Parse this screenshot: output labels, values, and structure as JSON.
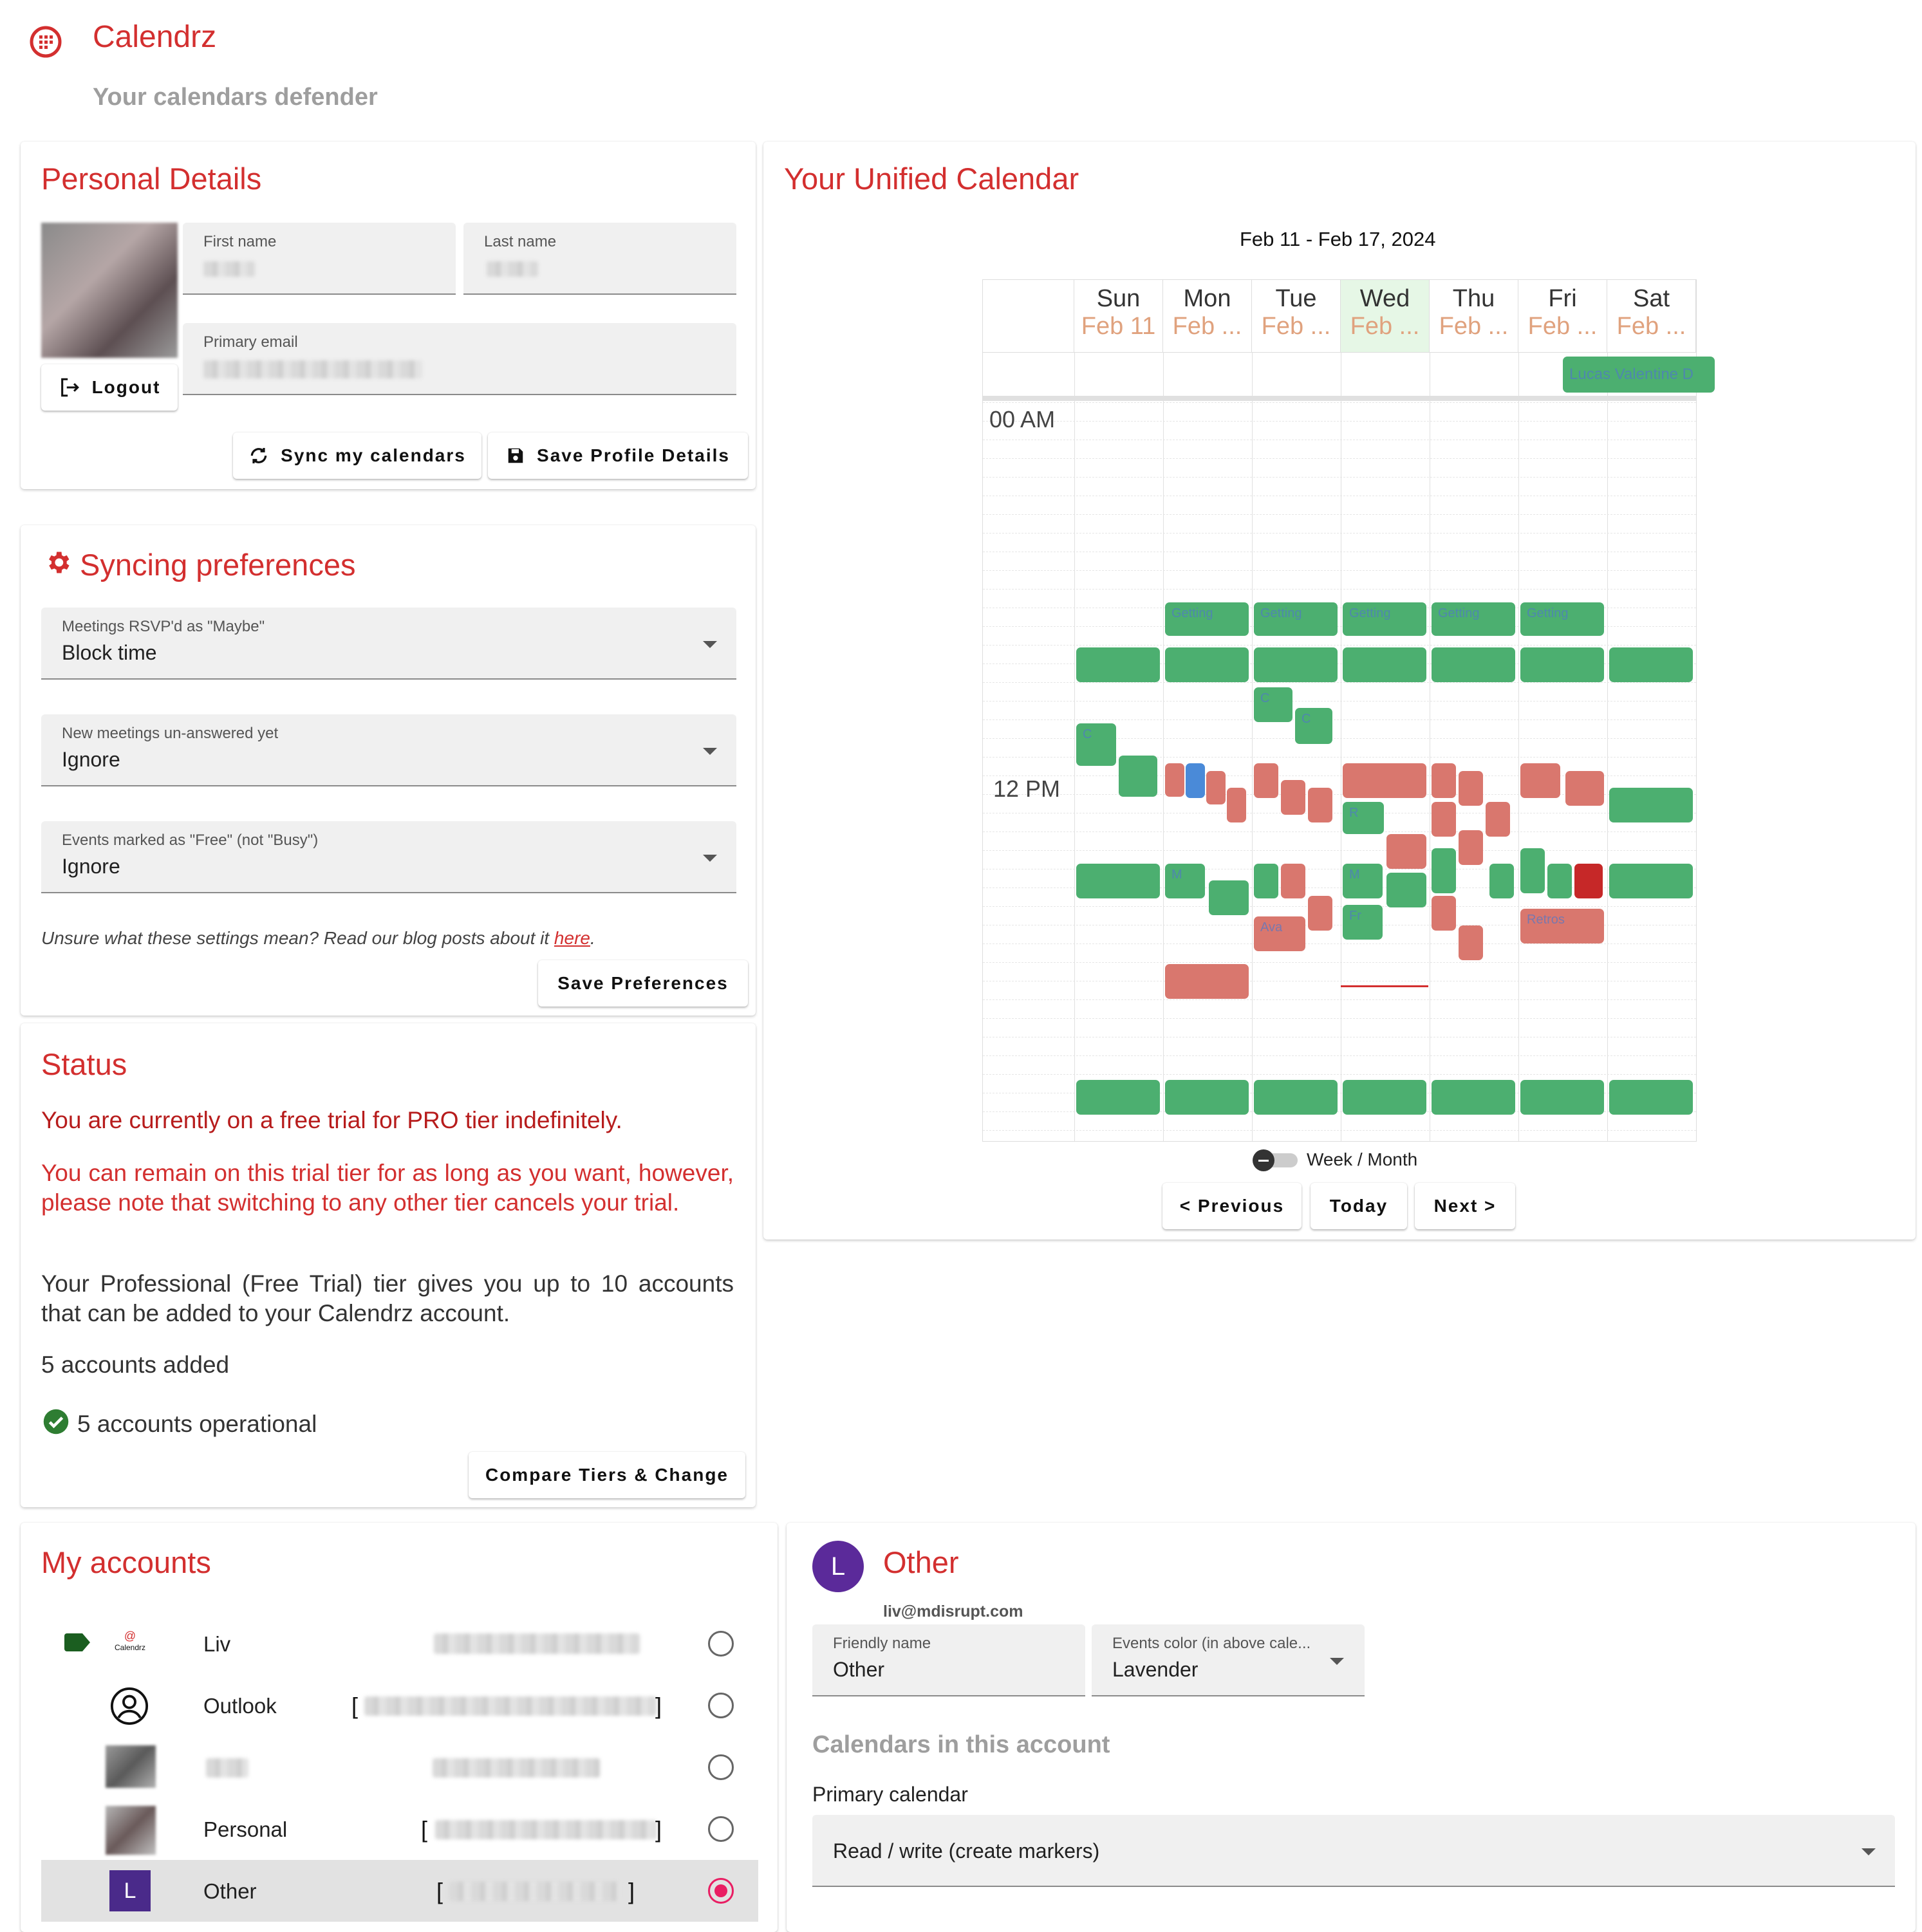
{
  "app": {
    "name": "Calendrz",
    "tagline": "Your calendars defender"
  },
  "colors": {
    "brand": "#d32f2f",
    "busy": "#4caf70",
    "free": "#d9776e",
    "today_bg": "#e6f7e6"
  },
  "personal": {
    "title": "Personal Details",
    "first_name_label": "First name",
    "last_name_label": "Last name",
    "email_label": "Primary email",
    "logout": "Logout",
    "sync": "Sync my calendars",
    "save": "Save Profile Details"
  },
  "prefs": {
    "title": "Syncing preferences",
    "maybe_label": "Meetings RSVP'd as \"Maybe\"",
    "maybe_value": "Block time",
    "unanswered_label": "New meetings un-answered yet",
    "unanswered_value": "Ignore",
    "free_label": "Events marked as \"Free\" (not \"Busy\")",
    "free_value": "Ignore",
    "help_text": "Unsure what these settings mean? Read our blog posts about it ",
    "help_link": "here",
    "help_end": ".",
    "save": "Save Preferences"
  },
  "status": {
    "title": "Status",
    "p1": "You are currently on a free trial for PRO tier indefinitely.",
    "p2": "You can remain on this trial tier for as long as you want, however, please note that switching to any other tier cancels your trial.",
    "p3": "Your Professional (Free Trial) tier gives you up to 10 accounts that can be added to your Calendrz account.",
    "p4": "5 accounts added",
    "p5": "5 accounts operational",
    "compare": "Compare Tiers & Change"
  },
  "calendar": {
    "title": "Your Unified Calendar",
    "range": "Feb 11 - Feb 17, 2024",
    "days": [
      {
        "name": "Sun",
        "date": "Feb 11"
      },
      {
        "name": "Mon",
        "date": "Feb ..."
      },
      {
        "name": "Tue",
        "date": "Feb ..."
      },
      {
        "name": "Wed",
        "date": "Feb ..."
      },
      {
        "name": "Thu",
        "date": "Feb ..."
      },
      {
        "name": "Fri",
        "date": "Feb ..."
      },
      {
        "name": "Sat",
        "date": "Feb ..."
      }
    ],
    "time_00": "00 AM",
    "time_12": "12 PM",
    "allday_event": "Lucas Valentine D",
    "toggle_label": "Week / Month",
    "prev": "< Previous",
    "today": "Today",
    "next": "Next >",
    "event_labels": [
      "Getting",
      "Ava",
      "Retros",
      "Lunch",
      "C",
      "M",
      "Fr",
      "R"
    ]
  },
  "accounts": {
    "title": "My accounts",
    "items": [
      {
        "name": "Liv",
        "brand": "Calendrz"
      },
      {
        "name": "Outlook"
      },
      {
        "name": ""
      },
      {
        "name": "Personal"
      },
      {
        "name": "Other",
        "initial": "L"
      }
    ]
  },
  "detail": {
    "initial": "L",
    "name": "Other",
    "email": "liv@mdisrupt.com",
    "friendly_label": "Friendly name",
    "friendly_value": "Other",
    "color_label": "Events color (in above cale...",
    "color_value": "Lavender",
    "section": "Calendars in this account",
    "primary_label": "Primary calendar",
    "primary_value": "Read / write (create markers)"
  }
}
